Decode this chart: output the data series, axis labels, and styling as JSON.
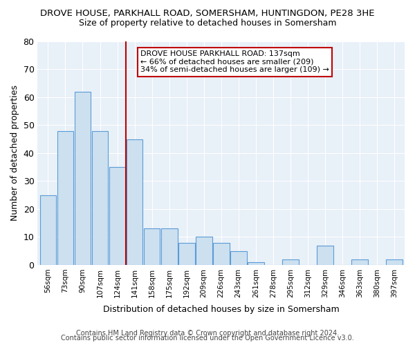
{
  "title1": "DROVE HOUSE, PARKHALL ROAD, SOMERSHAM, HUNTINGDON, PE28 3HE",
  "title2": "Size of property relative to detached houses in Somersham",
  "xlabel": "Distribution of detached houses by size in Somersham",
  "ylabel": "Number of detached properties",
  "categories": [
    "56sqm",
    "73sqm",
    "90sqm",
    "107sqm",
    "124sqm",
    "141sqm",
    "158sqm",
    "175sqm",
    "192sqm",
    "209sqm",
    "226sqm",
    "243sqm",
    "261sqm",
    "278sqm",
    "295sqm",
    "312sqm",
    "329sqm",
    "346sqm",
    "363sqm",
    "380sqm",
    "397sqm"
  ],
  "values": [
    25,
    48,
    62,
    48,
    35,
    45,
    13,
    13,
    8,
    10,
    8,
    5,
    1,
    0,
    2,
    0,
    7,
    0,
    2,
    0,
    2
  ],
  "bar_color": "#cce0f0",
  "bar_edge_color": "#5b9bd5",
  "vline_color": "#c00000",
  "vline_pos": 5.0,
  "annotation_text": "DROVE HOUSE PARKHALL ROAD: 137sqm\n← 66% of detached houses are smaller (209)\n34% of semi-detached houses are larger (109) →",
  "annotation_box_color": "white",
  "annotation_box_edge": "#c00000",
  "ylim": [
    0,
    80
  ],
  "yticks": [
    0,
    10,
    20,
    30,
    40,
    50,
    60,
    70,
    80
  ],
  "footer1": "Contains HM Land Registry data © Crown copyright and database right 2024.",
  "footer2": "Contains public sector information licensed under the Open Government Licence v3.0.",
  "bg_color": "#e8f0f8",
  "title_fontsize": 9.5,
  "subtitle_fontsize": 9
}
